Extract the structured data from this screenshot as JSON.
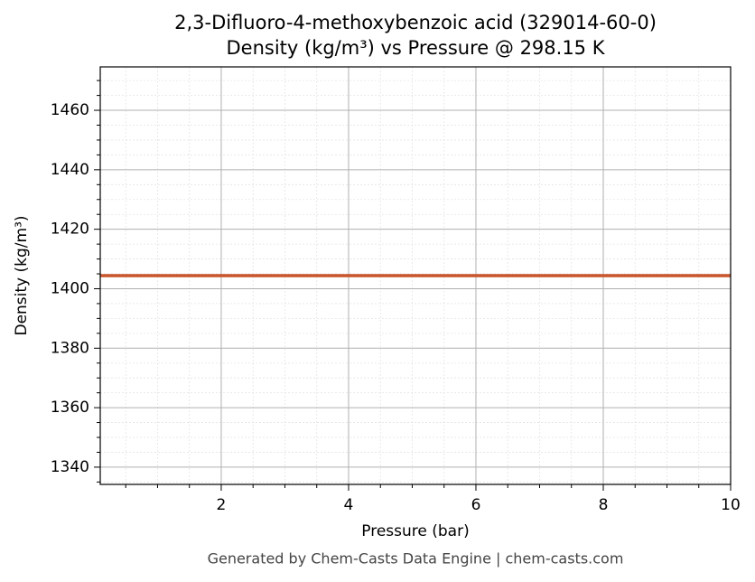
{
  "chart_data": {
    "type": "line",
    "title": "2,3-Difluoro-4-methoxybenzoic acid (329014-60-0)",
    "subtitle": "Density (kg/m³) vs Pressure @ 298.15 K",
    "xlabel": "Pressure (bar)",
    "ylabel": "Density (kg/m³)",
    "footer": "Generated by Chem-Casts Data Engine | chem-casts.com",
    "x": [
      0.1,
      10
    ],
    "series": [
      {
        "name": "Density",
        "color": "#c8552b",
        "values": [
          1404.4,
          1404.4
        ]
      }
    ],
    "xlim": [
      0.1,
      10
    ],
    "xticks": [
      2,
      4,
      6,
      8,
      10
    ],
    "xminorticks": [
      0.5,
      1,
      1.5,
      2.5,
      3,
      3.5,
      4.5,
      5,
      5.5,
      6.5,
      7,
      7.5,
      8.5,
      9,
      9.5
    ],
    "ylim": [
      1334.2,
      1474.6
    ],
    "yticks": [
      1340,
      1360,
      1380,
      1400,
      1420,
      1440,
      1460
    ],
    "yminorticks": [
      1335,
      1345,
      1350,
      1355,
      1365,
      1370,
      1375,
      1385,
      1390,
      1395,
      1405,
      1410,
      1415,
      1425,
      1430,
      1435,
      1445,
      1450,
      1455,
      1465,
      1470
    ],
    "grid": true
  }
}
